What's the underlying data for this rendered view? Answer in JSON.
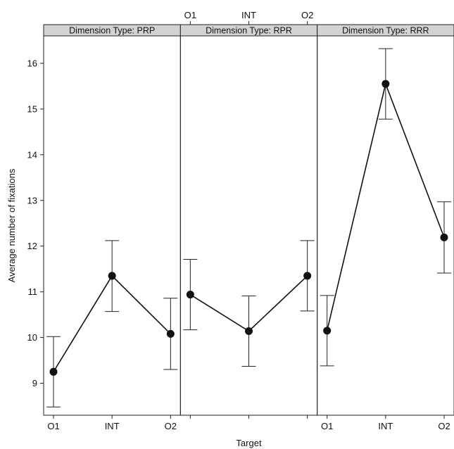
{
  "chart_data": {
    "type": "line",
    "xlabel": "Target",
    "ylabel": "Average number of fixations",
    "categories": [
      "O1",
      "INT",
      "O2"
    ],
    "ylim": [
      8.3,
      16.6
    ],
    "yticks": [
      9,
      10,
      11,
      12,
      13,
      14,
      15,
      16
    ],
    "error_bars": true,
    "grid": false,
    "panels": [
      {
        "strip": "Dimension Type: PRP",
        "values": [
          9.25,
          11.35,
          10.08
        ],
        "lower": [
          8.48,
          10.57,
          9.3
        ],
        "upper": [
          10.02,
          12.12,
          10.86
        ]
      },
      {
        "strip": "Dimension Type: RPR",
        "values": [
          10.94,
          10.14,
          11.35
        ],
        "lower": [
          10.17,
          9.37,
          10.58
        ],
        "upper": [
          11.71,
          10.91,
          12.12
        ]
      },
      {
        "strip": "Dimension Type: RRR",
        "values": [
          10.15,
          15.55,
          12.19
        ],
        "lower": [
          9.38,
          14.78,
          11.41
        ],
        "upper": [
          10.92,
          16.32,
          12.97
        ]
      }
    ],
    "colors": {
      "strip_bg": "#d3d3d3",
      "line": "#111111",
      "point": "#111111"
    }
  }
}
